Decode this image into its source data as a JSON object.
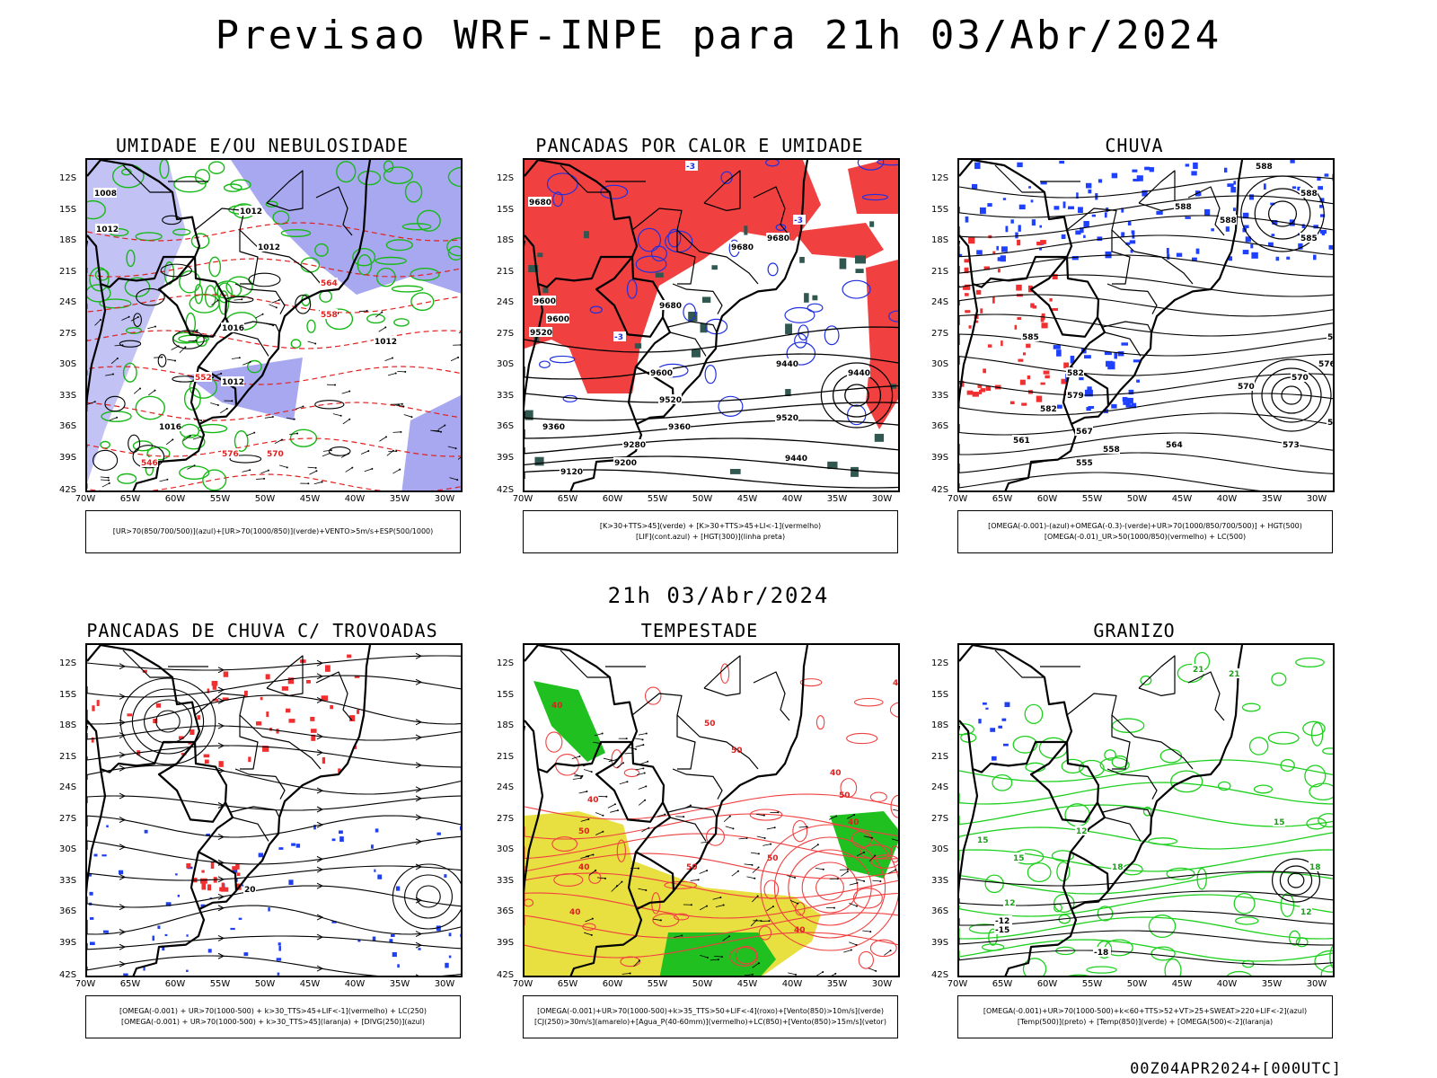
{
  "title": "Previsao WRF-INPE  para 21h 03/Abr/2024",
  "subtitle": "21h 03/Abr/2024",
  "footer": "00Z04APR2024+[000UTC]",
  "lat_labels": [
    "12S",
    "15S",
    "18S",
    "21S",
    "24S",
    "27S",
    "30S",
    "33S",
    "36S",
    "39S",
    "42S"
  ],
  "lon_labels": [
    "70W",
    "65W",
    "60W",
    "55W",
    "50W",
    "45W",
    "40W",
    "35W",
    "30W"
  ],
  "colors": {
    "blue_fill": "#a8a8f0",
    "red_fill": "#f04040",
    "green_fill": "#20c020",
    "yellow_fill": "#e8e040",
    "teal_fill": "#305850"
  },
  "panels": [
    {
      "title": "UMIDADE E/OU NEBULOSIDADE",
      "legend": [
        "[UR>70(850/700/500)](azul)+[UR>70(1000/850)](verde)+VENTO>5m/s+ESP(500/1000)"
      ],
      "labels": [
        "1008",
        "1012",
        "1012",
        "1012",
        "1016",
        "1012",
        "1012",
        "1016",
        "576",
        "570",
        "564",
        "558",
        "552",
        "546"
      ]
    },
    {
      "title": "PANCADAS POR CALOR E UMIDADE",
      "legend": [
        "[K>30+TTS>45](verde) + [K>30+TTS>45+LI<-1](vermelho)",
        "[LIF](cont.azul) + [HGT(300)](linha preta)"
      ],
      "labels": [
        "9680",
        "9680",
        "9680",
        "9680",
        "9600",
        "9600",
        "9520",
        "9600",
        "9520",
        "9440",
        "9440",
        "9360",
        "9360",
        "9280",
        "9200",
        "9120",
        "9520",
        "9440",
        "-3",
        "-3",
        "-3"
      ]
    },
    {
      "title": "CHUVA",
      "legend": [
        "[OMEGA(-0.001)-(azul)+OMEGA(-0.3)-(verde)+UR>70(1000/850/700/500)] + HGT(500)",
        "[OMEGA(-0.01)_UR>50(1000/850)(vermelho) + LC(500)"
      ],
      "labels": [
        "588",
        "588",
        "588",
        "588",
        "585",
        "585",
        "582",
        "582",
        "579",
        "579",
        "576",
        "573",
        "573",
        "570",
        "570",
        "567",
        "567",
        "564",
        "561",
        "558",
        "555"
      ]
    },
    {
      "title": "PANCADAS DE CHUVA C/ TROVOADAS",
      "legend": [
        "[OMEGA(-0.001) + UR>70(1000-500) + k>30_TTS>45+LIF<-1](vermelho) + LC(250)",
        "[OMEGA(-0.001) + UR>70(1000-500) + k>30_TTS>45](laranja) + [DIVG(250)](azul)"
      ],
      "labels": [
        "20"
      ]
    },
    {
      "title": "TEMPESTADE",
      "legend": [
        "[OMEGA(-0.001)+UR>70(1000-500)+k>35_TTS>50+LIF<-4](roxo)+[Vento(850)>10m/s](verde)",
        "[CJ(250)>30m/s](amarelo)+[Agua_P(40-60mm)](vermelho)+LC(850)+[Vento(850)>15m/s](vetor)"
      ],
      "labels": [
        "40",
        "50",
        "50",
        "40",
        "50",
        "40",
        "40",
        "50",
        "40",
        "50",
        "50",
        "40",
        "40",
        "40"
      ]
    },
    {
      "title": "GRANIZO",
      "legend": [
        "[OMEGA(-0.001)+UR>70(1000-500)+k<60+TTS>52+VT>25+SWEAT>220+LIF<-2](azul)",
        "[Temp(500)](preto) + [Temp(850)](verde) + [OMEGA(500)<-2](laranja)"
      ],
      "labels": [
        "21",
        "21",
        "18",
        "18",
        "15",
        "15",
        "12",
        "12",
        "-12",
        "-15",
        "-18",
        "12",
        "15"
      ]
    }
  ]
}
